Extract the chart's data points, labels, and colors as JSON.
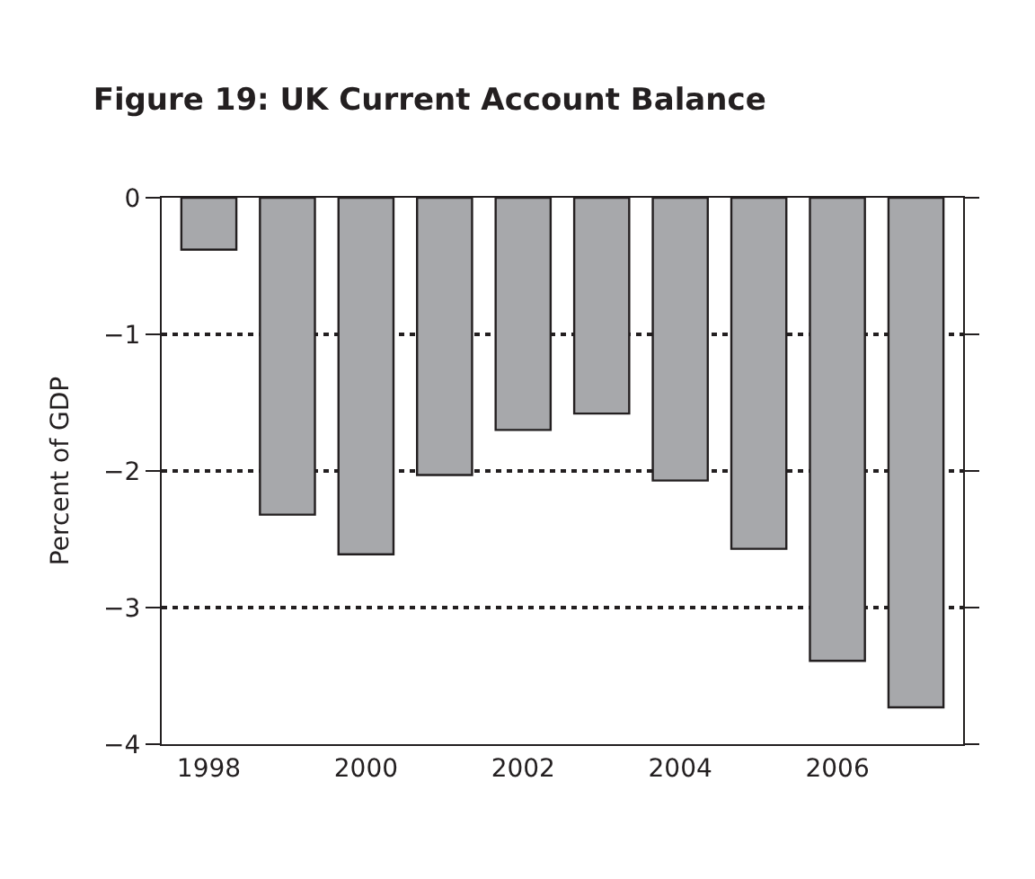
{
  "chart_data": {
    "type": "bar",
    "title": "Figure 19: UK Current Account Balance",
    "ylabel": "Percent of GDP",
    "categories": [
      "1998",
      null,
      "2000",
      null,
      "2002",
      null,
      "2004",
      null,
      "2006",
      null
    ],
    "values": [
      -0.38,
      -2.32,
      -2.61,
      -2.03,
      -1.7,
      -1.58,
      -2.07,
      -2.57,
      -3.39,
      -3.73
    ],
    "color": "#a7a8ab",
    "ylim": [
      -4,
      0
    ],
    "yticks": [
      {
        "value": -4,
        "label": "−4"
      },
      {
        "value": -3,
        "label": "−3"
      },
      {
        "value": -2,
        "label": "−2"
      },
      {
        "value": -1,
        "label": "−1"
      },
      0
    ],
    "grid": "y",
    "legend": false
  }
}
